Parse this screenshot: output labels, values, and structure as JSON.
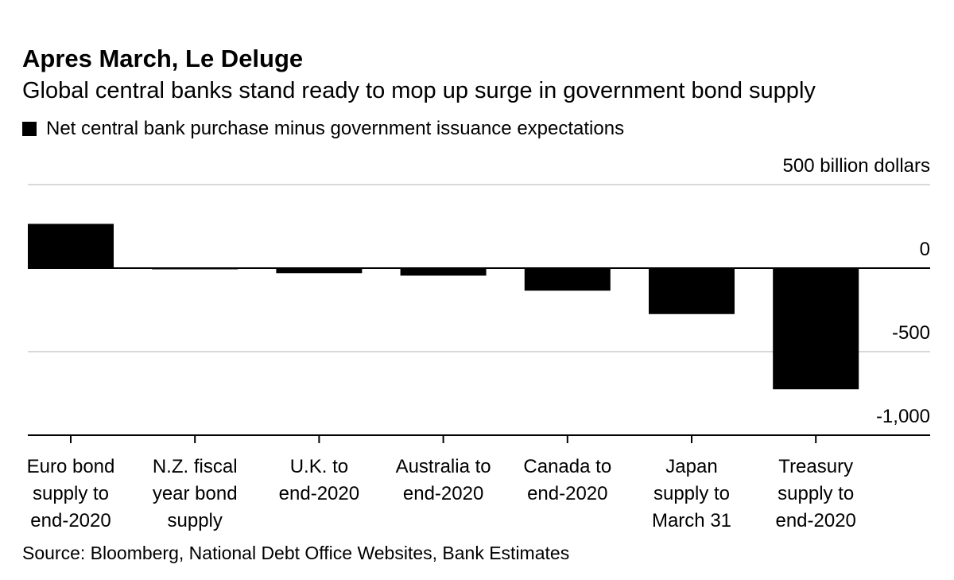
{
  "title": "Apres March, Le Deluge",
  "subtitle": "Global central banks stand ready to mop up surge in government bond supply",
  "legend_label": "Net central bank purchase minus government issuance expectations",
  "source": "Source: Bloomberg, National Debt Office Websites, Bank Estimates",
  "colors": {
    "bar": "#000000",
    "grid": "#cccccc",
    "axis": "#000000"
  },
  "chart_data": {
    "type": "bar",
    "title": "Apres March, Le Deluge",
    "subtitle": "Global central banks stand ready to mop up surge in government bond supply",
    "unit_label": "500 billion dollars",
    "categories": [
      [
        "Euro bond",
        "supply to",
        "end-2020"
      ],
      [
        "N.Z. fiscal",
        "year bond",
        "supply"
      ],
      [
        "U.K. to",
        "end-2020"
      ],
      [
        "Australia to",
        "end-2020"
      ],
      [
        "Canada to",
        "end-2020"
      ],
      [
        "Japan",
        "supply to",
        "March 31"
      ],
      [
        "Treasury",
        "supply to",
        "end-2020"
      ]
    ],
    "series": [
      {
        "name": "Net central bank purchase minus government issuance expectations",
        "values": [
          265,
          -5,
          -30,
          -45,
          -135,
          -275,
          -725
        ]
      }
    ],
    "ylim": [
      -1000,
      500
    ],
    "yticks": [
      500,
      0,
      -500,
      -1000
    ],
    "ytick_labels": [
      "500 billion dollars",
      "0",
      "-500",
      "-1,000"
    ],
    "grid": true,
    "legend_position": "top-left"
  }
}
